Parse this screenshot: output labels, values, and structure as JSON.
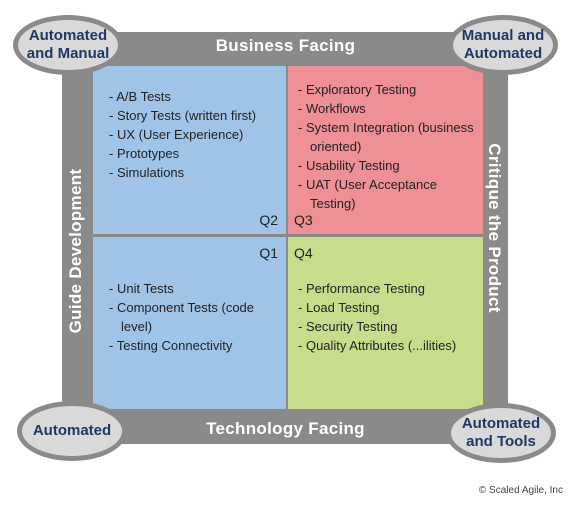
{
  "bands": {
    "top": "Business Facing",
    "bottom": "Technology Facing",
    "left": "Guide Development",
    "right": "Critique the Product"
  },
  "corners": {
    "top_left": [
      "Automated",
      "and Manual"
    ],
    "top_right": [
      "Manual and",
      "Automated"
    ],
    "bottom_left": [
      "Automated"
    ],
    "bottom_right": [
      "Automated",
      "and Tools"
    ]
  },
  "quadrants": {
    "q2": {
      "label": "Q2",
      "items": [
        "A/B Tests",
        "Story Tests (written first)",
        "UX (User Experience)",
        "Prototypes",
        "Simulations"
      ]
    },
    "q3": {
      "label": "Q3",
      "items": [
        "Exploratory Testing",
        "Workflows",
        "System Integration (business oriented)",
        "Usability Testing",
        "UAT (User Acceptance Testing)"
      ]
    },
    "q1": {
      "label": "Q1",
      "items": [
        "Unit Tests",
        "Component Tests (code level)",
        "Testing Connectivity"
      ]
    },
    "q4": {
      "label": "Q4",
      "items": [
        "Performance Testing",
        "Load Testing",
        "Security Testing",
        "Quality Attributes (...ilities)"
      ]
    }
  },
  "copyright": "© Scaled Agile, Inc",
  "colors": {
    "frame": "#8a8a8a",
    "q1_q2": "#9fc4e8",
    "q3": "#ef8f96",
    "q4": "#c8dd8c",
    "oval_text": "#1f3864"
  }
}
